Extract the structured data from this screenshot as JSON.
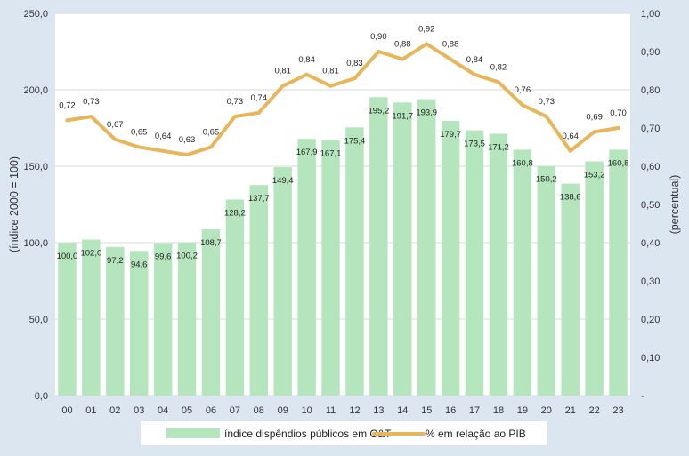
{
  "chart_data": {
    "type": "bar+line",
    "categories": [
      "00",
      "01",
      "02",
      "03",
      "04",
      "05",
      "06",
      "07",
      "08",
      "09",
      "10",
      "11",
      "12",
      "13",
      "14",
      "15",
      "16",
      "17",
      "18",
      "19",
      "20",
      "21",
      "22",
      "23"
    ],
    "series": [
      {
        "name": "índice dispêndios públicos em C&T",
        "type": "bar",
        "axis": "left",
        "values": [
          100.0,
          102.0,
          97.2,
          94.6,
          99.6,
          100.2,
          108.7,
          128.2,
          137.7,
          149.4,
          167.9,
          167.1,
          175.4,
          195.2,
          191.7,
          193.9,
          179.7,
          173.5,
          171.2,
          160.8,
          150.2,
          138.6,
          153.2,
          160.8
        ],
        "labels": [
          "100,0",
          "102,0",
          "97,2",
          "94,6",
          "99,6",
          "100,2",
          "108,7",
          "128,2",
          "137,7",
          "149,4",
          "167,9",
          "167,1",
          "175,4",
          "195,2",
          "191,7",
          "193,9",
          "179,7",
          "173,5",
          "171,2",
          "160,8",
          "150,2",
          "138,6",
          "153,2",
          "160,8"
        ],
        "color": "#b5e5bd"
      },
      {
        "name": "% em relação ao PIB",
        "type": "line",
        "axis": "right",
        "values": [
          0.72,
          0.73,
          0.67,
          0.65,
          0.64,
          0.63,
          0.65,
          0.73,
          0.74,
          0.81,
          0.84,
          0.81,
          0.83,
          0.9,
          0.88,
          0.92,
          0.88,
          0.84,
          0.82,
          0.76,
          0.73,
          0.64,
          0.69,
          0.7
        ],
        "labels": [
          "0,72",
          "0,73",
          "0,67",
          "0,65",
          "0,64",
          "0,63",
          "0,65",
          "0,73",
          "0,74",
          "0,81",
          "0,84",
          "0,81",
          "0,83",
          "0,90",
          "0,88",
          "0,92",
          "0,88",
          "0,84",
          "0,82",
          "0,76",
          "0,73",
          "0,64",
          "0,69",
          "0,70"
        ],
        "color": "#e8b65a"
      }
    ],
    "y_left": {
      "label": "(índice 2000 = 100)",
      "ylim": [
        0,
        250
      ],
      "ticks": [
        0,
        50,
        100,
        150,
        200,
        250
      ],
      "tick_labels": [
        "0,0",
        "50,0",
        "100,0",
        "150,0",
        "200,0",
        "250,0"
      ]
    },
    "y_right": {
      "label": "(percentual)",
      "ylim": [
        0,
        1
      ],
      "ticks": [
        0,
        0.1,
        0.2,
        0.3,
        0.4,
        0.5,
        0.6,
        0.7,
        0.8,
        0.9,
        1.0
      ],
      "tick_labels": [
        "-",
        "0,10",
        "0,20",
        "0,30",
        "0,40",
        "0,50",
        "0,60",
        "0,70",
        "0,80",
        "0,90",
        "1,00"
      ]
    },
    "legend": {
      "position": "bottom",
      "entries": [
        "índice dispêndios públicos em C&T",
        "% em relação ao PIB"
      ]
    },
    "grid": true,
    "colors": {
      "background": "#dce6f1",
      "plot_background": "#ffffff",
      "grid": "#d9d9d9"
    }
  }
}
